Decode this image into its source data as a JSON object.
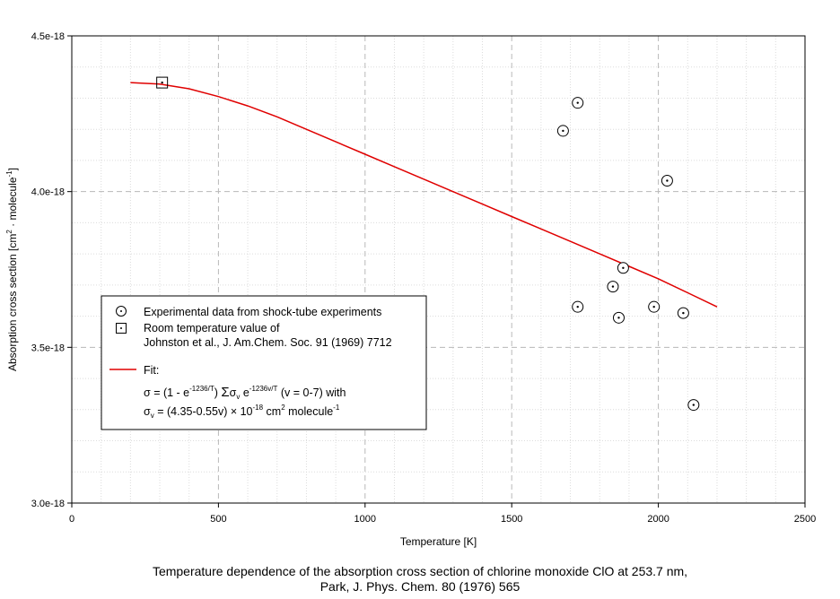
{
  "chart_data": {
    "type": "scatter",
    "xlabel": "Temperature [K]",
    "ylabel": "Absorption cross section [cm2 · molecule-1]",
    "ylabel_parts": {
      "base": "Absorption cross section [cm",
      "sup1": "2",
      "mid": " · molecule",
      "sup2": "-1",
      "end": "]"
    },
    "xlim": [
      0,
      2500
    ],
    "ylim": [
      3e-18,
      4.5e-18
    ],
    "x_ticks": [
      0,
      500,
      1000,
      1500,
      2000,
      2500
    ],
    "x_tick_labels": [
      "0",
      "500",
      "1000",
      "1500",
      "2000",
      "2500"
    ],
    "y_ticks": [
      3e-18,
      3.5e-18,
      4e-18,
      4.5e-18
    ],
    "y_tick_labels": [
      "3.0e-18",
      "3.5e-18",
      "4.0e-18",
      "4.5e-18"
    ],
    "x_minor_step": 100,
    "y_minor_step": 1e-19,
    "grid": true,
    "series": [
      {
        "name": "Experimental data from shock-tube experiments",
        "marker": "circle-dot",
        "points": [
          [
            1675,
            4.195e-18
          ],
          [
            1725,
            4.285e-18
          ],
          [
            2030,
            4.035e-18
          ],
          [
            1880,
            3.755e-18
          ],
          [
            1845,
            3.695e-18
          ],
          [
            1725,
            3.63e-18
          ],
          [
            1865,
            3.595e-18
          ],
          [
            1985,
            3.63e-18
          ],
          [
            2085,
            3.61e-18
          ],
          [
            2120,
            3.315e-18
          ]
        ]
      },
      {
        "name": "Room temperature value of Johnston et al., J. Am.Chem. Soc. 91 (1969) 7712",
        "marker": "square-dot",
        "points": [
          [
            308,
            4.35e-18
          ]
        ]
      },
      {
        "name": "Fit",
        "type": "line",
        "color": "#e00000",
        "points": [
          [
            200,
            4.35e-18
          ],
          [
            300,
            4.345e-18
          ],
          [
            400,
            4.33e-18
          ],
          [
            500,
            4.305e-18
          ],
          [
            600,
            4.275e-18
          ],
          [
            700,
            4.24e-18
          ],
          [
            800,
            4.2e-18
          ],
          [
            900,
            4.16e-18
          ],
          [
            1000,
            4.12e-18
          ],
          [
            1100,
            4.08e-18
          ],
          [
            1200,
            4.04e-18
          ],
          [
            1300,
            4e-18
          ],
          [
            1400,
            3.96e-18
          ],
          [
            1500,
            3.92e-18
          ],
          [
            1600,
            3.88e-18
          ],
          [
            1700,
            3.84e-18
          ],
          [
            1800,
            3.8e-18
          ],
          [
            1900,
            3.76e-18
          ],
          [
            2000,
            3.72e-18
          ],
          [
            2100,
            3.675e-18
          ],
          [
            2200,
            3.63e-18
          ]
        ]
      }
    ],
    "legend": {
      "entry1": "Experimental data from shock-tube experiments",
      "entry2_line1": "Room temperature value of",
      "entry2_line2": "Johnston et al., J. Am.Chem. Soc. 91 (1969) 7712",
      "fit_label": "Fit:",
      "formula1": {
        "a": "σ = (1 - e",
        "sup_a": "-1236/T",
        "b": ") ",
        "sum": "Σ",
        "c": "σ",
        "sub_c": "v",
        "d": " e",
        "sup_d": "-1236v/T",
        "e": " (v = 0-7) with"
      },
      "formula2": {
        "a": "σ",
        "sub_a": "v",
        "b": " = (4.35-0.55v) × 10",
        "sup_b": "-18",
        "c": " cm",
        "sup_c": "2",
        "d": " molecule",
        "sup_d": "-1"
      }
    },
    "caption_line1": "Temperature dependence of the absorption cross section of chlorine monoxide ClO at 253.7 nm,",
    "caption_line2": "Park, J. Phys. Chem. 80 (1976) 565"
  }
}
